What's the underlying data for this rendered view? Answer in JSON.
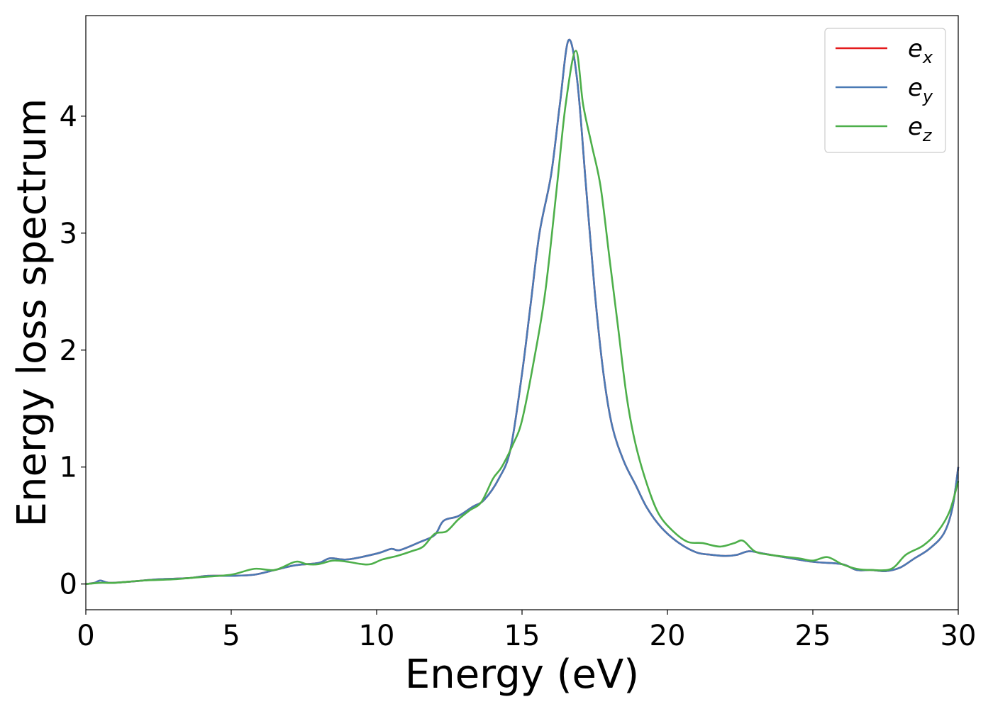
{
  "chart_data": {
    "type": "line",
    "title": "",
    "xlabel": "Energy (eV)",
    "ylabel": "Energy loss spectrum",
    "xlim": [
      0,
      30
    ],
    "ylim": [
      -0.22,
      4.86
    ],
    "xticks": [
      0,
      5,
      10,
      15,
      20,
      25,
      30
    ],
    "xtick_labels": [
      "0",
      "5",
      "10",
      "15",
      "20",
      "25",
      "30"
    ],
    "yticks": [
      0,
      1,
      2,
      3,
      4
    ],
    "ytick_labels": [
      "0",
      "1",
      "2",
      "3",
      "4"
    ],
    "grid": false,
    "legend_position": "top-right",
    "series": [
      {
        "name": "e_x",
        "legend_base": "e",
        "legend_sub": "x",
        "color": "#e41a1c",
        "x": [
          0,
          0.3,
          0.5,
          0.8,
          1.5,
          2.5,
          3.5,
          4.2,
          5.0,
          5.8,
          6.5,
          7.2,
          8.0,
          8.4,
          9.0,
          10.0,
          10.5,
          10.8,
          11.5,
          12.0,
          12.3,
          12.8,
          13.3,
          13.7,
          14.2,
          14.6,
          15.0,
          15.3,
          15.6,
          16.0,
          16.3,
          16.6,
          16.9,
          17.2,
          17.5,
          17.8,
          18.1,
          18.5,
          18.9,
          19.3,
          19.8,
          20.4,
          21.0,
          21.5,
          22.0,
          22.4,
          22.8,
          23.3,
          24.0,
          25.0,
          26.0,
          26.5,
          27.0,
          27.5,
          28.0,
          28.5,
          29.0,
          29.5,
          29.8,
          30.0
        ],
        "y": [
          0,
          0.01,
          0.03,
          0.01,
          0.02,
          0.04,
          0.05,
          0.07,
          0.07,
          0.08,
          0.12,
          0.16,
          0.18,
          0.22,
          0.21,
          0.26,
          0.3,
          0.29,
          0.36,
          0.42,
          0.54,
          0.58,
          0.66,
          0.72,
          0.9,
          1.15,
          1.8,
          2.4,
          3.0,
          3.5,
          4.1,
          4.65,
          4.3,
          3.4,
          2.5,
          1.8,
          1.35,
          1.05,
          0.85,
          0.65,
          0.48,
          0.35,
          0.27,
          0.25,
          0.24,
          0.25,
          0.28,
          0.26,
          0.23,
          0.19,
          0.17,
          0.12,
          0.12,
          0.11,
          0.14,
          0.22,
          0.3,
          0.43,
          0.65,
          1.0
        ]
      },
      {
        "name": "e_y",
        "legend_base": "e",
        "legend_sub": "y",
        "color": "#4a7ab5",
        "x": [
          0,
          0.3,
          0.5,
          0.8,
          1.5,
          2.5,
          3.5,
          4.2,
          5.0,
          5.8,
          6.5,
          7.2,
          8.0,
          8.4,
          9.0,
          10.0,
          10.5,
          10.8,
          11.5,
          12.0,
          12.3,
          12.8,
          13.3,
          13.7,
          14.2,
          14.6,
          15.0,
          15.3,
          15.6,
          16.0,
          16.3,
          16.6,
          16.9,
          17.2,
          17.5,
          17.8,
          18.1,
          18.5,
          18.9,
          19.3,
          19.8,
          20.4,
          21.0,
          21.5,
          22.0,
          22.4,
          22.8,
          23.3,
          24.0,
          25.0,
          26.0,
          26.5,
          27.0,
          27.5,
          28.0,
          28.5,
          29.0,
          29.5,
          29.8,
          30.0
        ],
        "y": [
          0,
          0.01,
          0.03,
          0.01,
          0.02,
          0.04,
          0.05,
          0.07,
          0.07,
          0.08,
          0.12,
          0.16,
          0.18,
          0.22,
          0.21,
          0.26,
          0.3,
          0.29,
          0.36,
          0.42,
          0.54,
          0.58,
          0.66,
          0.72,
          0.9,
          1.15,
          1.8,
          2.4,
          3.0,
          3.5,
          4.1,
          4.65,
          4.3,
          3.4,
          2.5,
          1.8,
          1.35,
          1.05,
          0.85,
          0.65,
          0.48,
          0.35,
          0.27,
          0.25,
          0.24,
          0.25,
          0.28,
          0.26,
          0.23,
          0.19,
          0.17,
          0.12,
          0.12,
          0.11,
          0.14,
          0.22,
          0.3,
          0.43,
          0.65,
          1.0
        ]
      },
      {
        "name": "e_z",
        "legend_base": "e",
        "legend_sub": "z",
        "color": "#4daf4a",
        "x": [
          0,
          0.5,
          1.0,
          2.0,
          3.0,
          4.0,
          5.0,
          5.8,
          6.5,
          7.2,
          7.6,
          8.0,
          8.5,
          9.0,
          9.5,
          9.8,
          10.2,
          10.7,
          11.2,
          11.6,
          12.0,
          12.4,
          12.8,
          13.2,
          13.6,
          14.0,
          14.3,
          14.7,
          15.0,
          15.4,
          15.8,
          16.2,
          16.5,
          16.85,
          17.1,
          17.4,
          17.7,
          18.0,
          18.3,
          18.6,
          18.9,
          19.3,
          19.7,
          20.2,
          20.7,
          21.2,
          21.8,
          22.3,
          22.6,
          23.0,
          23.5,
          24.5,
          25.0,
          25.5,
          26.0,
          26.5,
          27.0,
          27.7,
          28.2,
          28.8,
          29.3,
          29.7,
          30.0
        ],
        "y": [
          0,
          0.01,
          0.01,
          0.03,
          0.04,
          0.06,
          0.08,
          0.13,
          0.12,
          0.19,
          0.17,
          0.17,
          0.2,
          0.19,
          0.17,
          0.17,
          0.21,
          0.24,
          0.28,
          0.32,
          0.43,
          0.45,
          0.55,
          0.63,
          0.7,
          0.9,
          1.0,
          1.2,
          1.4,
          1.9,
          2.5,
          3.4,
          4.1,
          4.56,
          4.1,
          3.75,
          3.4,
          2.8,
          2.2,
          1.6,
          1.2,
          0.85,
          0.6,
          0.45,
          0.36,
          0.35,
          0.32,
          0.35,
          0.37,
          0.28,
          0.25,
          0.22,
          0.2,
          0.23,
          0.17,
          0.13,
          0.12,
          0.13,
          0.25,
          0.33,
          0.45,
          0.62,
          0.88
        ]
      }
    ]
  }
}
